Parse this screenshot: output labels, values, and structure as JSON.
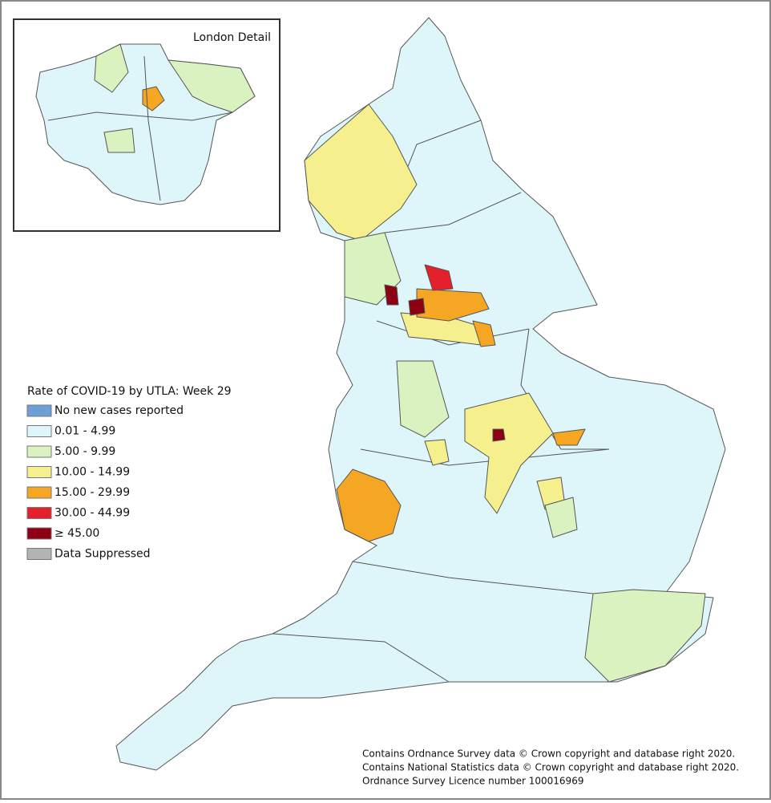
{
  "inset": {
    "title": "London Detail"
  },
  "legend": {
    "title": "Rate of COVID-19 by UTLA: Week 29",
    "items": [
      {
        "label": "No new cases reported",
        "color": "#6f9fd6"
      },
      {
        "label": "0.01 - 4.99",
        "color": "#def6fa"
      },
      {
        "label": "5.00 - 9.99",
        "color": "#d9f2bf"
      },
      {
        "label": "10.00 - 14.99",
        "color": "#f6ef8e"
      },
      {
        "label": "15.00 - 29.99",
        "color": "#f5a623"
      },
      {
        "label": "30.00 - 44.99",
        "color": "#e3202b"
      },
      {
        "label": "≥ 45.00",
        "color": "#8c0012"
      },
      {
        "label": "Data Suppressed",
        "color": "#b3b3b3"
      }
    ]
  },
  "attribution": [
    "Contains Ordnance Survey data © Crown copyright and database right 2020.",
    "Contains National Statistics data © Crown copyright and database right 2020.",
    "Ordnance Survey Licence number 100016969"
  ]
}
